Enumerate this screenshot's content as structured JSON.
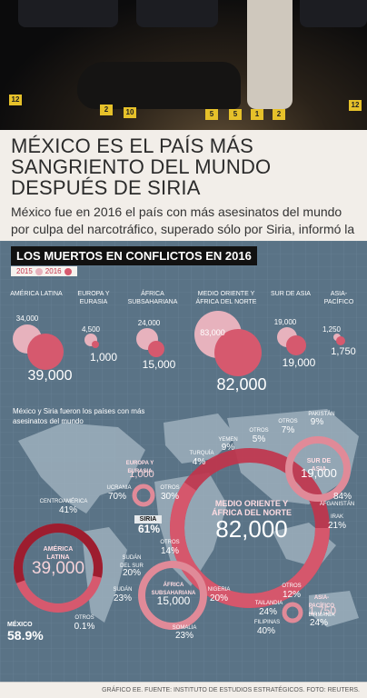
{
  "photo": {
    "markers": [
      "12",
      "2",
      "10",
      "5",
      "5",
      "1",
      "2",
      "12"
    ]
  },
  "headline": {
    "title": "MÉXICO ES EL PAÍS MÁS SANGRIENTO DEL MUNDO DESPUÉS DE SIRIA",
    "deck": "México fue en 2016 el país con más asesinatos del mundo por culpa del narcotráfico, superado sólo por Siria, informó la a organización IISS en su informe anual sobre conflictos."
  },
  "graphic": {
    "banner": "LOS MUERTOS EN CONFLICTOS EN 2016",
    "legend": {
      "y2015": "2015",
      "y2016": "2016",
      "color_2015": "#e7b2bd",
      "color_2016": "#d6596e"
    },
    "regions": [
      {
        "name": "AMÉRICA LATINA",
        "v2015": "34,000",
        "v2016": "39,000"
      },
      {
        "name": "EUROPA Y EURASIA",
        "v2015": "4,500",
        "v2016": "1,000"
      },
      {
        "name": "ÁFRICA SUBSAHARIANA",
        "v2015": "24,000",
        "v2016": "15,000"
      },
      {
        "name": "MEDIO ORIENTE Y ÁFRICA DEL NORTE",
        "v2015": "83,000",
        "v2016": "82,000"
      },
      {
        "name": "SUR DE ASIA",
        "v2015": "19,000",
        "v2016": "19,000"
      },
      {
        "name": "ASIA-PACÍFICO",
        "v2015": "1,250",
        "v2016": "1,750"
      }
    ],
    "map_subtitle": "México y Siria fueron los países con más asesinatos del mundo",
    "map": {
      "latam": {
        "name": "AMÉRICA LATINA",
        "value": "39,000"
      },
      "europe": {
        "name": "EUROPA Y EURASIA",
        "value": "1,000"
      },
      "africa": {
        "name": "ÁFRICA SUBSAHARIANA",
        "value": "15,000"
      },
      "mena": {
        "name": "MEDIO ORIENTE Y ÁFRICA DEL NORTE",
        "value": "82,000"
      },
      "south_asia": {
        "name": "SUR DE ASIA",
        "value": "19,000"
      },
      "asia_pacific": {
        "name": "ASIA-PACÍFICO",
        "value": "1,750"
      },
      "mexico": {
        "name": "MÉXICO",
        "pct": "58.9%"
      },
      "siria": {
        "name": "SIRIA",
        "pct": "61%"
      },
      "centroamerica": {
        "name": "CENTROAMÉRICA",
        "pct": "41%"
      },
      "otros_latam": {
        "name": "OTROS",
        "pct": "0.1%"
      },
      "ucrania": {
        "name": "UCRANIA",
        "pct": "70%"
      },
      "otros_europa": {
        "name": "OTROS",
        "pct": "30%"
      },
      "turquia": {
        "name": "TURQUÍA",
        "pct": "4%"
      },
      "yemen": {
        "name": "YEMEN",
        "pct": "9%"
      },
      "otros_me1": {
        "name": "OTROS",
        "pct": "5%"
      },
      "otros_me2": {
        "name": "OTROS",
        "pct": "7%"
      },
      "pakistan": {
        "name": "PAKISTÁN",
        "pct": "9%"
      },
      "afganistan": {
        "name": "AFGANISTÁN",
        "pct": "84%"
      },
      "irak": {
        "name": "IRAK",
        "pct": "21%"
      },
      "otros_mena": {
        "name": "OTROS",
        "pct": "14%"
      },
      "sudan_sur": {
        "name": "SUDÁN DEL SUR",
        "pct": "20%"
      },
      "sudan": {
        "name": "SUDÁN",
        "pct": "23%"
      },
      "nigeria": {
        "name": "NIGERIA",
        "pct": "20%"
      },
      "somalia": {
        "name": "SOMALIA",
        "pct": "23%"
      },
      "otros_asia": {
        "name": "OTROS",
        "pct": "12%"
      },
      "tailandia": {
        "name": "TAILANDIA",
        "pct": "24%"
      },
      "filipinas": {
        "name": "FILIPINAS",
        "pct": "40%"
      },
      "birmania": {
        "name": "BIRMANIA",
        "pct": "24%"
      }
    }
  },
  "footer": {
    "credit": "GRÁFICO EE. FUENTE: INSTITUTO DE ESTUDIOS ESTRATÉGICOS. FOTO: REUTERS."
  }
}
